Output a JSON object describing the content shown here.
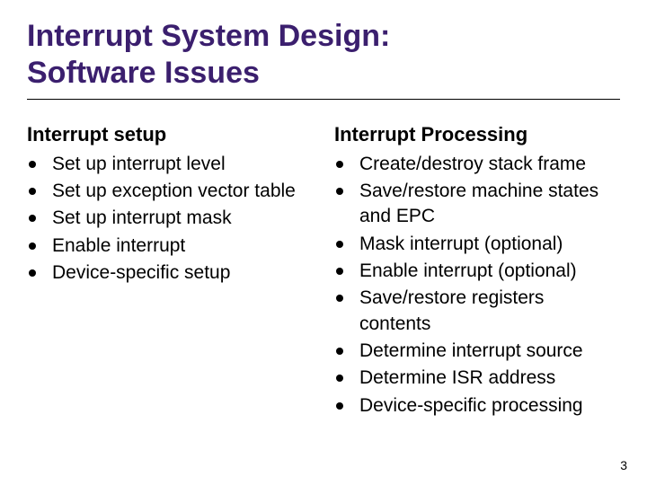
{
  "title_line1": "Interrupt System Design:",
  "title_line2": "Software Issues",
  "left": {
    "heading": "Interrupt setup",
    "items": [
      "Set up interrupt level",
      "Set up exception vector table",
      "Set up interrupt mask",
      "Enable interrupt",
      "Device-specific setup"
    ]
  },
  "right": {
    "heading": "Interrupt Processing",
    "items": [
      "Create/destroy stack frame",
      "Save/restore machine states and EPC",
      "Mask interrupt (optional)",
      "Enable interrupt (optional)",
      "Save/restore registers contents",
      "Determine interrupt source",
      "Determine ISR address",
      "Device-specific processing"
    ]
  },
  "page_number": "3",
  "colors": {
    "title": "#3b1f6e",
    "text": "#000000",
    "background": "#ffffff"
  }
}
